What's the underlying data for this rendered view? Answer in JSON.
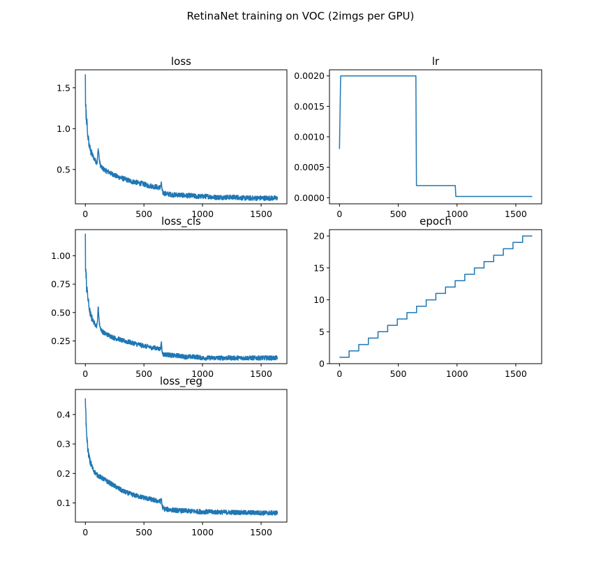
{
  "chart_data": {
    "title": "RetinaNet training on VOC (2imgs per GPU)",
    "line_color": "#1f77b4",
    "panels": [
      {
        "name": "loss",
        "title": "loss",
        "type": "line",
        "xlim": [
          -85,
          1720
        ],
        "ylim": [
          0.08,
          1.72
        ],
        "xticks": [
          0,
          500,
          1000,
          1500
        ],
        "xtick_labels": [
          "0",
          "500",
          "1000",
          "1500"
        ],
        "yticks": [
          0.5,
          1.0,
          1.5
        ],
        "ytick_labels": [
          "0.5",
          "1.0",
          "1.5"
        ],
        "x": [
          0,
          2,
          4,
          6,
          8,
          10,
          14,
          18,
          22,
          26,
          30,
          40,
          50,
          60,
          70,
          80,
          90,
          100,
          110,
          115,
          120,
          130,
          140,
          160,
          180,
          200,
          220,
          240,
          260,
          280,
          300,
          320,
          340,
          360,
          380,
          400,
          420,
          440,
          460,
          480,
          500,
          520,
          540,
          560,
          580,
          600,
          620,
          640,
          650,
          655,
          660,
          670,
          700,
          750,
          800,
          850,
          900,
          950,
          1000,
          1050,
          1100,
          1150,
          1200,
          1250,
          1300,
          1350,
          1400,
          1450,
          1500,
          1550,
          1600,
          1640
        ],
        "y": [
          1.65,
          1.2,
          1.3,
          1.1,
          1.25,
          1.0,
          1.1,
          0.95,
          0.9,
          0.88,
          0.82,
          0.75,
          0.7,
          0.68,
          0.65,
          0.62,
          0.6,
          0.58,
          0.75,
          0.7,
          0.6,
          0.55,
          0.52,
          0.5,
          0.48,
          0.47,
          0.45,
          0.44,
          0.42,
          0.41,
          0.4,
          0.39,
          0.38,
          0.37,
          0.36,
          0.35,
          0.35,
          0.34,
          0.33,
          0.33,
          0.32,
          0.31,
          0.3,
          0.3,
          0.29,
          0.29,
          0.28,
          0.28,
          0.33,
          0.24,
          0.22,
          0.21,
          0.2,
          0.19,
          0.19,
          0.18,
          0.18,
          0.17,
          0.17,
          0.17,
          0.16,
          0.16,
          0.16,
          0.16,
          0.16,
          0.15,
          0.15,
          0.15,
          0.15,
          0.15,
          0.15,
          0.15
        ],
        "noise": 0.03
      },
      {
        "name": "lr",
        "title": "lr",
        "type": "line",
        "xlim": [
          -85,
          1720
        ],
        "ylim": [
          -0.0001,
          0.0021
        ],
        "xticks": [
          0,
          500,
          1000,
          1500
        ],
        "xtick_labels": [
          "0",
          "500",
          "1000",
          "1500"
        ],
        "yticks": [
          0.0,
          0.0005,
          0.001,
          0.0015,
          0.002
        ],
        "ytick_labels": [
          "0.0000",
          "0.0005",
          "0.0010",
          "0.0015",
          "0.0020"
        ],
        "x": [
          0,
          10,
          650,
          655,
          985,
          990,
          1640
        ],
        "y": [
          0.0008,
          0.002,
          0.002,
          0.0002,
          0.0002,
          2e-05,
          2e-05
        ],
        "noise": 0
      },
      {
        "name": "loss_cls",
        "title": "loss_cls",
        "type": "line",
        "xlim": [
          -85,
          1720
        ],
        "ylim": [
          0.05,
          1.23
        ],
        "xticks": [
          0,
          500,
          1000,
          1500
        ],
        "xtick_labels": [
          "0",
          "500",
          "1000",
          "1500"
        ],
        "yticks": [
          0.25,
          0.5,
          0.75,
          1.0
        ],
        "ytick_labels": [
          "0.25",
          "0.50",
          "0.75",
          "1.00"
        ],
        "x": [
          0,
          2,
          4,
          6,
          8,
          10,
          14,
          18,
          22,
          26,
          30,
          40,
          50,
          60,
          70,
          80,
          90,
          100,
          110,
          115,
          120,
          130,
          140,
          160,
          180,
          200,
          220,
          240,
          260,
          280,
          300,
          320,
          340,
          360,
          380,
          400,
          420,
          440,
          460,
          480,
          500,
          520,
          540,
          560,
          580,
          600,
          620,
          640,
          650,
          655,
          660,
          670,
          700,
          750,
          800,
          850,
          900,
          950,
          1000,
          1050,
          1100,
          1150,
          1200,
          1250,
          1300,
          1350,
          1400,
          1450,
          1500,
          1550,
          1600,
          1640
        ],
        "y": [
          1.17,
          0.8,
          0.92,
          0.78,
          0.85,
          0.7,
          0.75,
          0.66,
          0.62,
          0.6,
          0.56,
          0.5,
          0.46,
          0.44,
          0.42,
          0.4,
          0.39,
          0.38,
          0.55,
          0.48,
          0.4,
          0.36,
          0.34,
          0.32,
          0.31,
          0.3,
          0.29,
          0.28,
          0.27,
          0.27,
          0.26,
          0.25,
          0.25,
          0.24,
          0.24,
          0.23,
          0.23,
          0.22,
          0.22,
          0.21,
          0.21,
          0.2,
          0.2,
          0.19,
          0.19,
          0.19,
          0.18,
          0.18,
          0.23,
          0.15,
          0.14,
          0.13,
          0.13,
          0.12,
          0.12,
          0.11,
          0.11,
          0.11,
          0.1,
          0.1,
          0.1,
          0.1,
          0.1,
          0.1,
          0.1,
          0.1,
          0.1,
          0.1,
          0.1,
          0.1,
          0.1,
          0.1
        ],
        "noise": 0.02
      },
      {
        "name": "epoch",
        "title": "epoch",
        "type": "line",
        "xlim": [
          -85,
          1720
        ],
        "ylim": [
          0,
          21
        ],
        "xticks": [
          0,
          500,
          1000,
          1500
        ],
        "xtick_labels": [
          "0",
          "500",
          "1000",
          "1500"
        ],
        "yticks": [
          0,
          5,
          10,
          15,
          20
        ],
        "ytick_labels": [
          "0",
          "5",
          "10",
          "15",
          "20"
        ],
        "step_width": 82,
        "start": 1,
        "end": 20,
        "x_end": 1640,
        "noise": 0
      },
      {
        "name": "loss_reg",
        "title": "loss_reg",
        "type": "line",
        "xlim": [
          -85,
          1720
        ],
        "ylim": [
          0.035,
          0.485
        ],
        "xticks": [
          0,
          500,
          1000,
          1500
        ],
        "xtick_labels": [
          "0",
          "500",
          "1000",
          "1500"
        ],
        "yticks": [
          0.1,
          0.2,
          0.3,
          0.4
        ],
        "ytick_labels": [
          "0.1",
          "0.2",
          "0.3",
          "0.4"
        ],
        "x": [
          0,
          2,
          4,
          6,
          8,
          10,
          14,
          18,
          22,
          26,
          30,
          40,
          50,
          60,
          70,
          80,
          90,
          100,
          120,
          140,
          160,
          180,
          200,
          220,
          240,
          260,
          280,
          300,
          320,
          340,
          360,
          380,
          400,
          420,
          440,
          460,
          480,
          500,
          520,
          540,
          560,
          580,
          600,
          620,
          640,
          650,
          655,
          660,
          670,
          700,
          750,
          800,
          850,
          900,
          950,
          1000,
          1050,
          1100,
          1150,
          1200,
          1250,
          1300,
          1350,
          1400,
          1450,
          1500,
          1550,
          1600,
          1640
        ],
        "y": [
          0.465,
          0.4,
          0.42,
          0.36,
          0.38,
          0.33,
          0.32,
          0.3,
          0.28,
          0.27,
          0.26,
          0.24,
          0.23,
          0.22,
          0.21,
          0.205,
          0.2,
          0.195,
          0.19,
          0.185,
          0.18,
          0.175,
          0.17,
          0.165,
          0.16,
          0.155,
          0.15,
          0.145,
          0.14,
          0.137,
          0.134,
          0.131,
          0.128,
          0.126,
          0.124,
          0.122,
          0.12,
          0.118,
          0.116,
          0.114,
          0.112,
          0.11,
          0.108,
          0.106,
          0.104,
          0.115,
          0.09,
          0.085,
          0.08,
          0.078,
          0.076,
          0.074,
          0.073,
          0.072,
          0.071,
          0.07,
          0.07,
          0.069,
          0.069,
          0.068,
          0.068,
          0.068,
          0.067,
          0.067,
          0.067,
          0.066,
          0.066,
          0.066,
          0.066
        ],
        "noise": 0.008
      }
    ]
  }
}
